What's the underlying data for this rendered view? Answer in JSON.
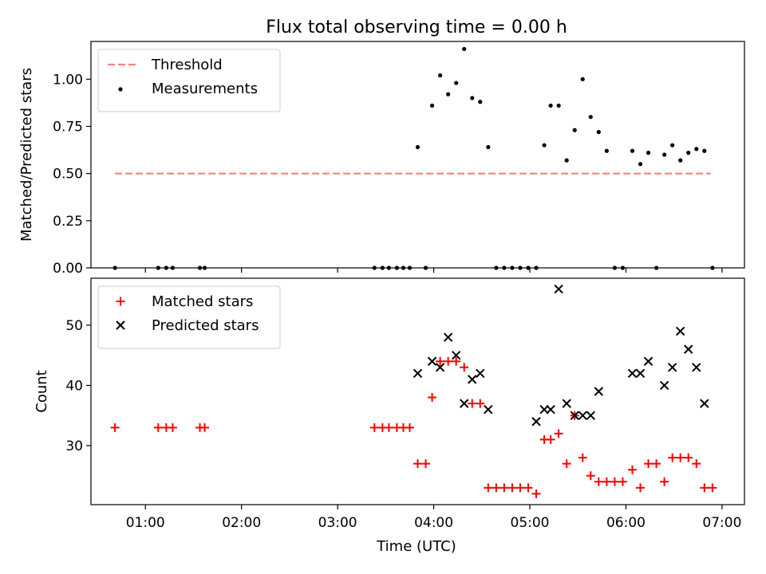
{
  "title": "Flux total observing time = 0.00 h",
  "xlabel": "Time (UTC)",
  "x_tick_labels": [
    "01:00",
    "02:00",
    "03:00",
    "04:00",
    "05:00",
    "06:00",
    "07:00"
  ],
  "colors": {
    "threshold": "#ff7f7f",
    "measurements": "#000000",
    "matched": "#ff0000",
    "predicted": "#000000"
  },
  "chart_data": [
    {
      "type": "scatter",
      "ylabel": "Matched/Predicted stars",
      "xlim": [
        "00:26",
        "07:14"
      ],
      "ylim": [
        0,
        1.2
      ],
      "y_ticks": [
        "0.00",
        "0.25",
        "0.50",
        "0.75",
        "1.00"
      ],
      "y_tick_values": [
        0,
        0.25,
        0.5,
        0.75,
        1.0
      ],
      "legend_position": "top-left",
      "threshold": {
        "name": "Threshold",
        "y": 0.5,
        "x_range": [
          "00:41",
          "06:53"
        ]
      },
      "series": [
        {
          "name": "Measurements",
          "x": [
            "00:41",
            "01:08",
            "01:13",
            "01:17",
            "01:34",
            "01:37",
            "03:23",
            "03:28",
            "03:32",
            "03:37",
            "03:41",
            "03:45",
            "03:50",
            "03:55",
            "03:59",
            "04:04",
            "04:09",
            "04:14",
            "04:19",
            "04:24",
            "04:29",
            "04:34",
            "04:39",
            "04:44",
            "04:49",
            "04:54",
            "04:59",
            "05:04",
            "05:09",
            "05:13",
            "05:18",
            "05:23",
            "05:28",
            "05:33",
            "05:38",
            "05:43",
            "05:48",
            "05:53",
            "05:58",
            "06:04",
            "06:09",
            "06:14",
            "06:19",
            "06:24",
            "06:29",
            "06:34",
            "06:39",
            "06:44",
            "06:49",
            "06:54"
          ],
          "y": [
            0,
            0,
            0,
            0,
            0,
            0,
            0,
            0,
            0,
            0,
            0,
            0,
            0.64,
            0,
            0.86,
            1.02,
            0.92,
            0.98,
            1.16,
            0.9,
            0.88,
            0.64,
            0,
            0,
            0,
            0,
            0,
            0,
            0.65,
            0.86,
            0.86,
            0.57,
            0.73,
            1.0,
            0.8,
            0.72,
            0.62,
            0,
            0,
            0.62,
            0.55,
            0.61,
            0,
            0.6,
            0.65,
            0.57,
            0.61,
            0.63,
            0.62,
            0
          ]
        }
      ]
    },
    {
      "type": "scatter",
      "ylabel": "Count",
      "xlim": [
        "00:26",
        "07:14"
      ],
      "ylim": [
        20.2,
        57.8
      ],
      "y_ticks": [
        "30",
        "40",
        "50"
      ],
      "y_tick_values": [
        30,
        40,
        50
      ],
      "legend_position": "top-left",
      "series": [
        {
          "name": "Matched stars",
          "marker": "plus",
          "x": [
            "00:41",
            "01:08",
            "01:13",
            "01:17",
            "01:34",
            "01:37",
            "03:23",
            "03:28",
            "03:32",
            "03:37",
            "03:41",
            "03:45",
            "03:50",
            "03:55",
            "03:59",
            "04:04",
            "04:09",
            "04:14",
            "04:19",
            "04:24",
            "04:29",
            "04:34",
            "04:39",
            "04:44",
            "04:49",
            "04:54",
            "04:59",
            "05:04",
            "05:09",
            "05:13",
            "05:18",
            "05:23",
            "05:28",
            "05:33",
            "05:38",
            "05:43",
            "05:48",
            "05:53",
            "05:58",
            "06:04",
            "06:09",
            "06:14",
            "06:19",
            "06:24",
            "06:29",
            "06:34",
            "06:39",
            "06:44",
            "06:49",
            "06:54"
          ],
          "y": [
            33,
            33,
            33,
            33,
            33,
            33,
            33,
            33,
            33,
            33,
            33,
            33,
            27,
            27,
            38,
            44,
            44,
            44,
            43,
            37,
            37,
            23,
            23,
            23,
            23,
            23,
            23,
            22,
            31,
            31,
            32,
            27,
            35,
            28,
            25,
            24,
            24,
            24,
            24,
            26,
            23,
            27,
            27,
            24,
            28,
            28,
            28,
            27,
            23,
            23
          ]
        },
        {
          "name": "Predicted stars",
          "marker": "x",
          "x": [
            "03:50",
            "03:59",
            "04:04",
            "04:09",
            "04:14",
            "04:19",
            "04:24",
            "04:29",
            "04:34",
            "05:04",
            "05:09",
            "05:13",
            "05:18",
            "05:23",
            "05:28",
            "05:33",
            "05:38",
            "05:43",
            "06:04",
            "06:09",
            "06:14",
            "06:24",
            "06:29",
            "06:34",
            "06:39",
            "06:44",
            "06:49"
          ],
          "y": [
            42,
            44,
            43,
            48,
            45,
            37,
            41,
            42,
            36,
            34,
            36,
            36,
            56,
            37,
            35,
            35,
            35,
            39,
            42,
            42,
            44,
            40,
            43,
            49,
            46,
            43,
            37
          ]
        }
      ]
    }
  ]
}
